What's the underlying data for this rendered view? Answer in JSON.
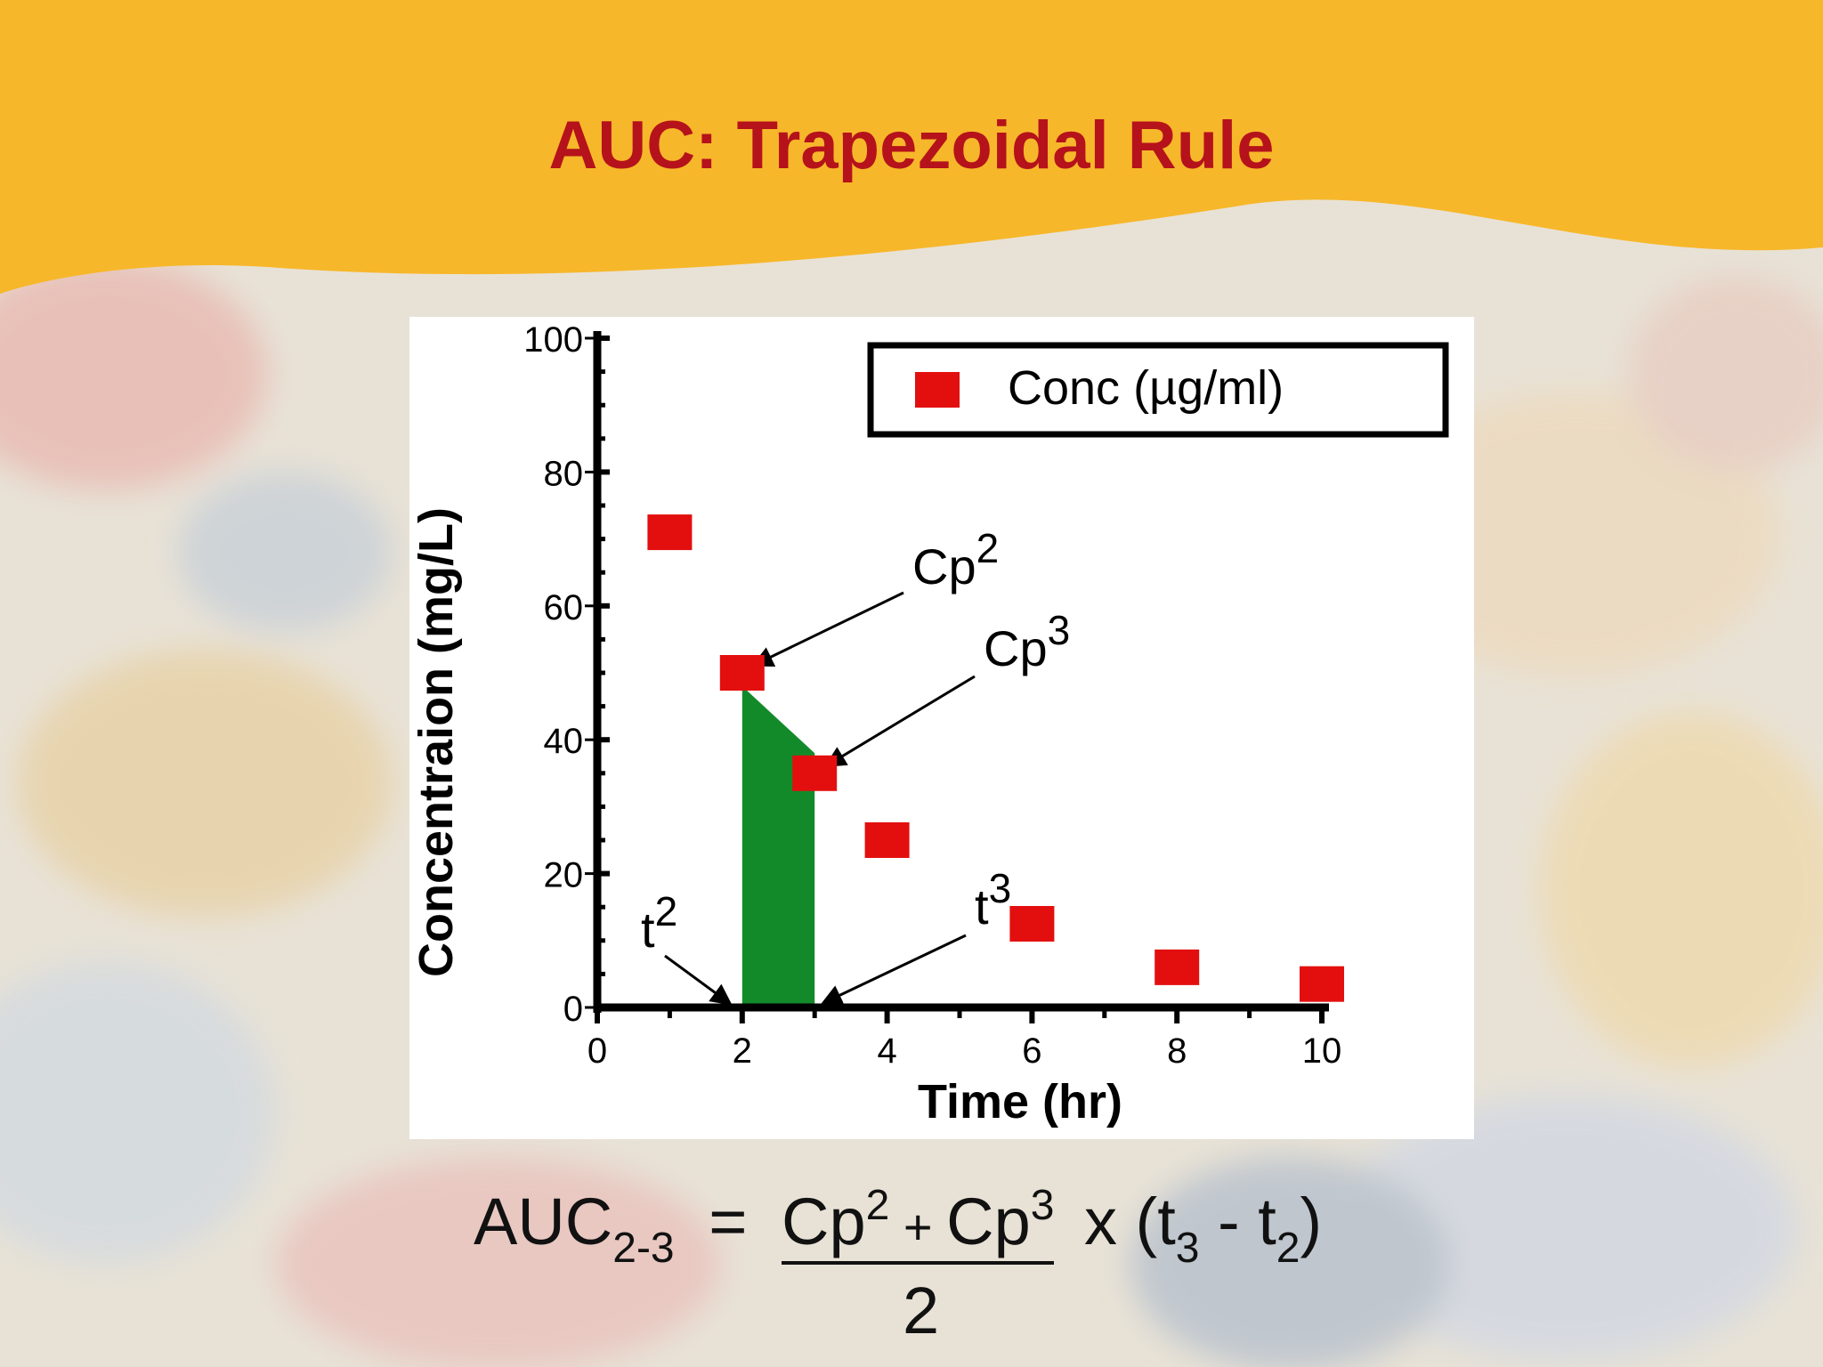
{
  "slide": {
    "title": "AUC: Trapezoidal Rule"
  },
  "theme": {
    "banner_color": "#f7b72a",
    "title_color": "#b5121b",
    "marker_color": "#e30f0f",
    "area_color": "#138a2a"
  },
  "chart_data": {
    "type": "scatter",
    "title": "",
    "xlabel": "Time (hr)",
    "ylabel": "Concentraion (mg/L)",
    "xlim": [
      0,
      10
    ],
    "ylim": [
      0,
      100
    ],
    "xticks": [
      0,
      2,
      4,
      6,
      8,
      10
    ],
    "yticks": [
      0,
      20,
      40,
      60,
      80,
      100
    ],
    "legend_position": "top-right",
    "series": [
      {
        "name": "Conc (µg/ml)",
        "x": [
          1,
          2,
          3,
          4,
          6,
          8,
          10
        ],
        "y": [
          71,
          50,
          35,
          25,
          12.5,
          6,
          3.5
        ]
      }
    ],
    "shaded_area": {
      "x_from": 2,
      "x_to": 3,
      "y_from": 48,
      "y_to": 38
    },
    "annotations": [
      {
        "text": "Cp",
        "sup": "2",
        "points_to": [
          2,
          50
        ]
      },
      {
        "text": "Cp",
        "sup": "3",
        "points_to": [
          3,
          35
        ]
      },
      {
        "text": "t",
        "sup": "2",
        "points_to": [
          2,
          0
        ]
      },
      {
        "text": "t",
        "sup": "3",
        "points_to": [
          3,
          0
        ]
      }
    ]
  },
  "formula": {
    "lhs": "AUC",
    "lhs_sub": "2-3",
    "equals": "=",
    "num_a": "Cp",
    "num_a_sup": "2",
    "plus": " + ",
    "num_b": "Cp",
    "num_b_sup": "3",
    "times": "x (t",
    "t3_sub": "3",
    "minus": " - t",
    "t2_sub": "2",
    "close": ")",
    "denominator": "2"
  }
}
